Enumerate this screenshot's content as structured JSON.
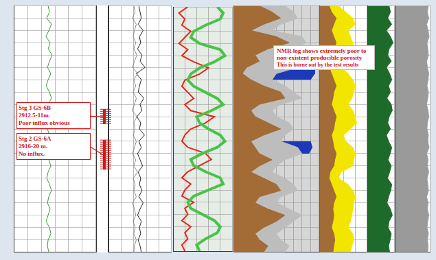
{
  "chart_data": [
    {
      "type": "line",
      "grid": true,
      "tick_labels": false,
      "depth": [
        0,
        2.5,
        5,
        7.5,
        10,
        12.5,
        15,
        17.5,
        20,
        22.5,
        25,
        27.5,
        30,
        32.5,
        35,
        37.5,
        40,
        42.5,
        45,
        47.5,
        50,
        52.5,
        55,
        57.5,
        60,
        62.5,
        65,
        67.5,
        70,
        72.5,
        75,
        77.5,
        80,
        82.5,
        85,
        87.5,
        90,
        92.5,
        95,
        97.5,
        100
      ],
      "xlim": [
        0,
        120
      ],
      "xticks": [
        0,
        20,
        40,
        60,
        80,
        100,
        120
      ],
      "ylim": [
        0,
        100
      ],
      "yticks": [
        0,
        5,
        10,
        15,
        20,
        25,
        30,
        35,
        40,
        45,
        50,
        55,
        60,
        65,
        70,
        75,
        80,
        85,
        90,
        95,
        100
      ],
      "series": [
        {
          "color": "#3a9a3a",
          "values": [
            50,
            52,
            48,
            55,
            51,
            47,
            53,
            50,
            56,
            52,
            49,
            54,
            50,
            47,
            52,
            55,
            50,
            48,
            53,
            51,
            49,
            52,
            56,
            50,
            47,
            51,
            54,
            50,
            48,
            52,
            55,
            51,
            49,
            53,
            50,
            47,
            52,
            54,
            50,
            49,
            51
          ]
        }
      ]
    },
    {
      "type": "line",
      "grid": true,
      "tick_labels": false,
      "depth": [
        0,
        2.5,
        5,
        7.5,
        10,
        12.5,
        15,
        17.5,
        20,
        22.5,
        25,
        27.5,
        30,
        32.5,
        35,
        37.5,
        40,
        42.5,
        45,
        47.5,
        50,
        52.5,
        55,
        57.5,
        60,
        62.5,
        65,
        67.5,
        70,
        72.5,
        75,
        77.5,
        80,
        82.5,
        85,
        87.5,
        90,
        92.5,
        95,
        97.5,
        100
      ],
      "xlim": [
        0,
        100
      ],
      "xticks": [
        0,
        20,
        40,
        60,
        80,
        100
      ],
      "ylim": [
        0,
        100
      ],
      "yticks": [
        0,
        5,
        10,
        15,
        20,
        25,
        30,
        35,
        40,
        45,
        50,
        55,
        60,
        65,
        70,
        75,
        80,
        85,
        90,
        95,
        100
      ],
      "series": [
        {
          "color": "#222222",
          "values": [
            48,
            50,
            52,
            47,
            55,
            49,
            51,
            46,
            53,
            50,
            58,
            44,
            52,
            49,
            47,
            56,
            50,
            53,
            45,
            51,
            49,
            57,
            48,
            52,
            46,
            50,
            54,
            47,
            51,
            49,
            53,
            48,
            55,
            50,
            46,
            52,
            49,
            51,
            47,
            50,
            52
          ]
        },
        {
          "color": "#8a8a8a",
          "values": [
            40,
            42,
            38,
            44,
            41,
            39,
            43,
            40,
            45,
            41,
            38,
            46,
            40,
            43,
            39,
            44,
            41,
            37,
            45,
            40,
            42,
            39,
            44,
            41,
            38,
            43,
            40,
            46,
            39,
            42,
            40,
            44,
            38,
            41,
            43,
            39,
            42,
            40,
            44,
            41,
            40
          ]
        }
      ],
      "annotations": [
        {
          "lines": [
            "Stg 3 GS-6B",
            "2912.5-11m.",
            "Poor influx obvious"
          ],
          "depth": [
            42,
            48
          ]
        },
        {
          "lines": [
            "Stg 2 GS-6A",
            "2916-20 m.",
            "No influx."
          ],
          "depth": [
            54.5,
            66.5
          ]
        }
      ]
    },
    {
      "type": "line",
      "grid": true,
      "tick_labels": false,
      "depth": [
        0,
        2.5,
        5,
        7.5,
        10,
        12.5,
        15,
        17.5,
        20,
        22.5,
        25,
        27.5,
        30,
        32.5,
        35,
        37.5,
        40,
        42.5,
        45,
        47.5,
        50,
        52.5,
        55,
        57.5,
        60,
        62.5,
        65,
        67.5,
        70,
        72.5,
        75,
        77.5,
        80,
        82.5,
        85,
        87.5,
        90,
        92.5,
        95,
        97.5,
        100
      ],
      "xlim": [
        0,
        100
      ],
      "xticks": [
        0,
        20,
        40,
        60,
        80,
        100
      ],
      "ylim": [
        0,
        100
      ],
      "yticks": [
        0,
        5,
        10,
        15,
        20,
        25,
        30,
        35,
        40,
        45,
        50,
        55,
        60,
        65,
        70,
        75,
        80,
        85,
        90,
        95,
        100
      ],
      "series": [
        {
          "color": "#47c447",
          "values": [
            75,
            85,
            80,
            55,
            35,
            30,
            45,
            80,
            88,
            70,
            45,
            30,
            25,
            35,
            55,
            75,
            85,
            65,
            40,
            45,
            60,
            80,
            88,
            75,
            50,
            30,
            35,
            55,
            80,
            85,
            60,
            35,
            25,
            30,
            50,
            70,
            80,
            75,
            55,
            40,
            45
          ]
        },
        {
          "color": "#e8261c",
          "values": [
            25,
            10,
            20,
            15,
            30,
            20,
            10,
            25,
            15,
            35,
            60,
            45,
            20,
            15,
            25,
            35,
            20,
            30,
            70,
            55,
            30,
            20,
            15,
            25,
            55,
            65,
            45,
            25,
            15,
            30,
            20,
            15,
            35,
            20,
            25,
            15,
            30,
            20,
            25,
            15,
            20
          ]
        }
      ]
    },
    {
      "type": "line",
      "grid": true,
      "tick_labels": false,
      "depth": [
        0,
        2.5,
        5,
        7.5,
        10,
        12.5,
        15,
        17.5,
        20,
        22.5,
        25,
        27.5,
        30,
        32.5,
        35,
        37.5,
        40,
        42.5,
        45,
        47.5,
        50,
        52.5,
        55,
        57.5,
        60,
        62.5,
        65,
        67.5,
        70,
        72.5,
        75,
        77.5,
        80,
        82.5,
        85,
        87.5,
        90,
        92.5,
        95,
        97.5,
        100
      ],
      "xlim": [
        0,
        100
      ],
      "xticks": [
        0,
        10,
        20,
        30,
        40,
        50,
        60,
        70,
        80,
        90,
        100
      ],
      "ylim": [
        0,
        100
      ],
      "yticks": [
        0,
        5,
        10,
        15,
        20,
        25,
        30,
        35,
        40,
        45,
        50,
        55,
        60,
        65,
        70,
        75,
        80,
        85,
        90,
        95,
        100
      ],
      "series": [
        {
          "type": "area",
          "color": "#1c3ab8",
          "values": [
            null,
            null,
            null,
            null,
            null,
            null,
            null,
            null,
            null,
            null,
            95,
            95,
            90,
            null,
            null,
            null,
            null,
            null,
            null,
            null,
            null,
            null,
            90,
            92,
            88,
            null,
            null,
            null,
            null,
            null,
            null,
            null,
            null,
            null,
            null,
            null,
            null,
            null,
            null,
            null,
            null
          ]
        },
        {
          "type": "area",
          "color": "#bdbdbd",
          "values": [
            60,
            70,
            75,
            55,
            45,
            80,
            85,
            70,
            60,
            65,
            75,
            50,
            45,
            60,
            70,
            80,
            55,
            45,
            50,
            65,
            70,
            60,
            55,
            75,
            80,
            60,
            50,
            45,
            60,
            70,
            75,
            55,
            50,
            65,
            80,
            70,
            60,
            50,
            55,
            65,
            60
          ]
        },
        {
          "type": "area",
          "color": "#a36b35",
          "values": [
            30,
            45,
            55,
            35,
            20,
            50,
            65,
            40,
            25,
            30,
            15,
            10,
            20,
            35,
            55,
            60,
            30,
            20,
            25,
            40,
            55,
            35,
            20,
            25,
            30,
            45,
            30,
            20,
            35,
            50,
            55,
            30,
            25,
            40,
            60,
            50,
            35,
            25,
            30,
            40,
            35
          ]
        }
      ],
      "annotations": [
        {
          "text": "NMR log shows extremely poor to non-existent producible porosity"
        },
        {
          "text": "This is borne out by the test results"
        }
      ]
    },
    {
      "type": "line",
      "grid": true,
      "tick_labels": false,
      "depth": [
        0,
        2.5,
        5,
        7.5,
        10,
        12.5,
        15,
        17.5,
        20,
        22.5,
        25,
        27.5,
        30,
        32.5,
        35,
        37.5,
        40,
        42.5,
        45,
        47.5,
        50,
        52.5,
        55,
        57.5,
        60,
        62.5,
        65,
        67.5,
        70,
        72.5,
        75,
        77.5,
        80,
        82.5,
        85,
        87.5,
        90,
        92.5,
        95,
        97.5,
        100
      ],
      "xlim": [
        0,
        100
      ],
      "xticks": [
        0,
        25,
        50,
        75,
        100
      ],
      "ylim": [
        0,
        100
      ],
      "yticks": [
        0,
        5,
        10,
        15,
        20,
        25,
        30,
        35,
        40,
        45,
        50,
        55,
        60,
        65,
        70,
        75,
        80,
        85,
        90,
        95,
        100
      ],
      "series": [
        {
          "type": "area",
          "color": "#f2e600",
          "values": [
            40,
            55,
            70,
            75,
            60,
            65,
            70,
            72,
            68,
            50,
            45,
            60,
            70,
            75,
            72,
            68,
            60,
            70,
            75,
            78,
            65,
            50,
            55,
            70,
            75,
            72,
            70,
            45,
            40,
            60,
            70,
            75,
            72,
            70,
            68,
            65,
            60,
            70,
            72,
            68,
            65
          ]
        },
        {
          "type": "area",
          "color": "#a36b35",
          "values": [
            20,
            25,
            35,
            30,
            25,
            30,
            35,
            30,
            28,
            25,
            20,
            25,
            30,
            35,
            30,
            28,
            25,
            30,
            35,
            32,
            30,
            25,
            28,
            30,
            35,
            32,
            30,
            22,
            20,
            25,
            30,
            35,
            30,
            28,
            30,
            28,
            25,
            30,
            32,
            30,
            28
          ]
        }
      ]
    },
    {
      "type": "line",
      "grid": true,
      "tick_labels": false,
      "depth": [
        0,
        2.5,
        5,
        7.5,
        10,
        12.5,
        15,
        17.5,
        20,
        22.5,
        25,
        27.5,
        30,
        32.5,
        35,
        37.5,
        40,
        42.5,
        45,
        47.5,
        50,
        52.5,
        55,
        57.5,
        60,
        62.5,
        65,
        67.5,
        70,
        72.5,
        75,
        77.5,
        80,
        82.5,
        85,
        87.5,
        90,
        92.5,
        95,
        97.5,
        100
      ],
      "xlim": [
        0,
        100
      ],
      "xticks": [
        0,
        50,
        100
      ],
      "ylim": [
        0,
        100
      ],
      "yticks": [
        0,
        5,
        10,
        15,
        20,
        25,
        30,
        35,
        40,
        45,
        50,
        55,
        60,
        65,
        70,
        75,
        80,
        85,
        90,
        95,
        100
      ],
      "series": [
        {
          "type": "area",
          "color": "#1e6a2a",
          "values": [
            80,
            85,
            75,
            90,
            70,
            85,
            95,
            80,
            75,
            88,
            70,
            82,
            90,
            78,
            85,
            72,
            88,
            92,
            80,
            75,
            85,
            70,
            78,
            90,
            84,
            76,
            88,
            82,
            74,
            90,
            86,
            78,
            72,
            85,
            92,
            80,
            76,
            88,
            84,
            78,
            82
          ]
        }
      ]
    },
    {
      "type": "line",
      "grid": true,
      "tick_labels": false,
      "depth": [
        0,
        2.5,
        5,
        7.5,
        10,
        12.5,
        15,
        17.5,
        20,
        22.5,
        25,
        27.5,
        30,
        32.5,
        35,
        37.5,
        40,
        42.5,
        45,
        47.5,
        50,
        52.5,
        55,
        57.5,
        60,
        62.5,
        65,
        67.5,
        70,
        72.5,
        75,
        77.5,
        80,
        82.5,
        85,
        87.5,
        90,
        92.5,
        95,
        97.5,
        100
      ],
      "xlim": [
        0,
        100
      ],
      "xticks": [
        0,
        50,
        100
      ],
      "ylim": [
        0,
        100
      ],
      "yticks": [
        0,
        5,
        10,
        15,
        20,
        25,
        30,
        35,
        40,
        45,
        50,
        55,
        60,
        65,
        70,
        75,
        80,
        85,
        90,
        95,
        100
      ],
      "series": [
        {
          "type": "area",
          "color": "#9a9a9a",
          "values": [
            95,
            92,
            96,
            90,
            94,
            97,
            91,
            93,
            95,
            90,
            92,
            96,
            94,
            91,
            95,
            93,
            90,
            94,
            96,
            92,
            91,
            95,
            93,
            97,
            90,
            94,
            92,
            96,
            91,
            93,
            95,
            90,
            94,
            92,
            96,
            93,
            91,
            95,
            92,
            94,
            93
          ]
        }
      ]
    }
  ]
}
